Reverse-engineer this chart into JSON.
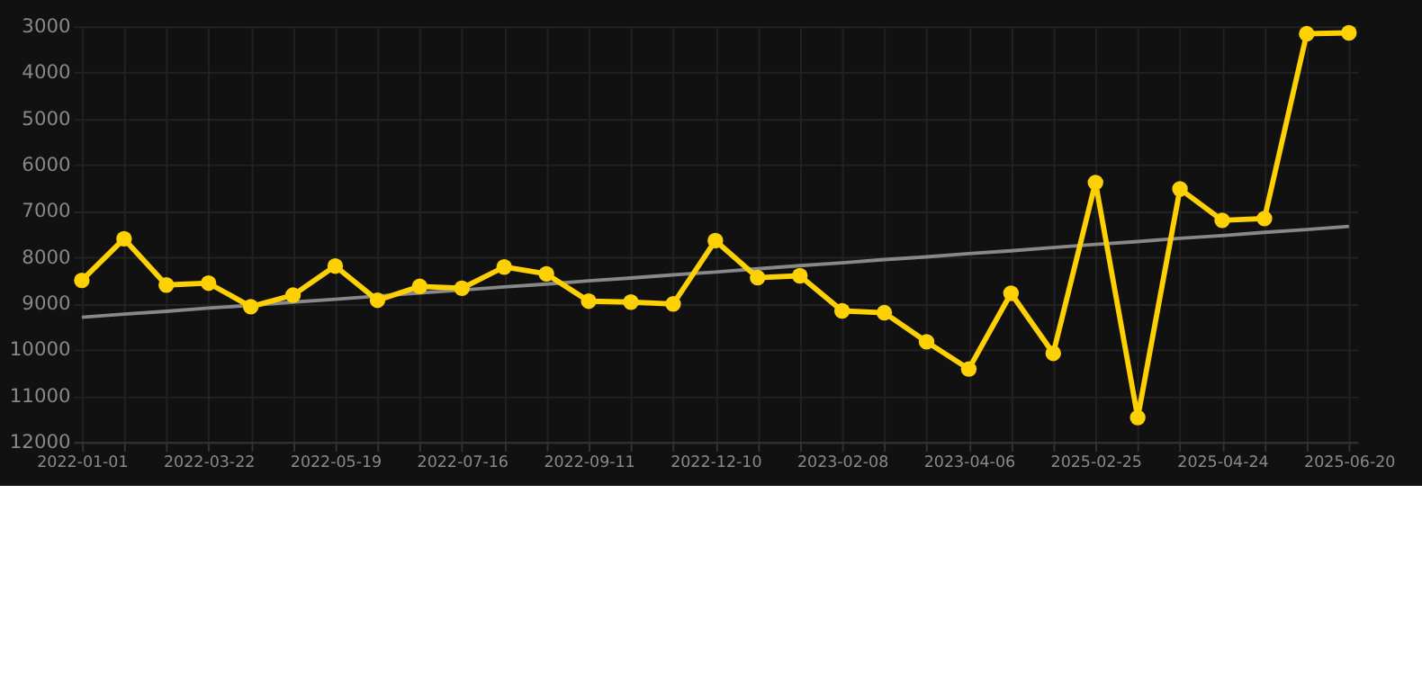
{
  "chart_data": {
    "type": "line",
    "categories": [
      "2022-01-01",
      null,
      null,
      "2022-03-22",
      null,
      null,
      "2022-05-19",
      null,
      null,
      "2022-07-16",
      null,
      null,
      "2022-09-11",
      null,
      null,
      "2022-12-10",
      null,
      null,
      "2023-02-08",
      null,
      null,
      "2023-04-06",
      null,
      null,
      "2025-02-25",
      null,
      null,
      "2025-04-24",
      null,
      null,
      "2025-06-20"
    ],
    "series": [
      {
        "color": "#ffd100",
        "marker": "circle",
        "values": [
          8500,
          7600,
          8600,
          8560,
          9070,
          8820,
          8190,
          8930,
          8630,
          8670,
          8210,
          8360,
          8950,
          8970,
          9010,
          7640,
          8440,
          8400,
          9160,
          9200,
          9830,
          10420,
          8780,
          10080,
          6380,
          11470,
          6520,
          7200,
          7160,
          3160,
          3140
        ]
      },
      {
        "type": "line",
        "color": "#888888",
        "marker": "none",
        "values": [
          9300,
          9230,
          9170,
          9100,
          9040,
          8970,
          8910,
          8840,
          8770,
          8710,
          8640,
          8580,
          8510,
          8450,
          8380,
          8320,
          8250,
          8180,
          8120,
          8050,
          7990,
          7920,
          7860,
          7790,
          7720,
          7660,
          7590,
          7530,
          7460,
          7400,
          7330
        ]
      }
    ],
    "ylim": [
      12000,
      3000
    ],
    "yticks": [
      3000,
      4000,
      5000,
      6000,
      7000,
      8000,
      9000,
      10000,
      11000,
      12000
    ],
    "grid": true
  }
}
